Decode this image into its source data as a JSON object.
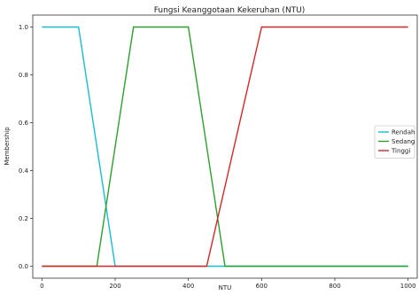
{
  "chart_data": {
    "type": "line",
    "title": "Fungsi Keanggotaan Kekeruhan (NTU)",
    "xlabel": "NTU",
    "ylabel": "Membership",
    "xlim": [
      -25,
      1025
    ],
    "ylim": [
      -0.05,
      1.05
    ],
    "xticks": [
      0,
      200,
      400,
      600,
      800,
      1000
    ],
    "yticks": [
      0.0,
      0.2,
      0.4,
      0.6,
      0.8,
      1.0
    ],
    "xtick_labels": [
      "0",
      "200",
      "400",
      "600",
      "800",
      "1000"
    ],
    "ytick_labels": [
      "0.0",
      "0.2",
      "0.4",
      "0.6",
      "0.8",
      "1.0"
    ],
    "grid": false,
    "legend_position": "center-right",
    "series": [
      {
        "name": "Rendah",
        "color": "#17becf",
        "x": [
          0,
          100,
          200,
          1000
        ],
        "y": [
          1,
          1,
          0,
          0
        ]
      },
      {
        "name": "Sedang",
        "color": "#2ca02c",
        "x": [
          0,
          150,
          250,
          400,
          500,
          1000
        ],
        "y": [
          0,
          0,
          1,
          1,
          0,
          0
        ]
      },
      {
        "name": "Tinggi",
        "color": "#d62728",
        "x": [
          0,
          450,
          600,
          1000
        ],
        "y": [
          0,
          0,
          1,
          1
        ]
      }
    ]
  }
}
